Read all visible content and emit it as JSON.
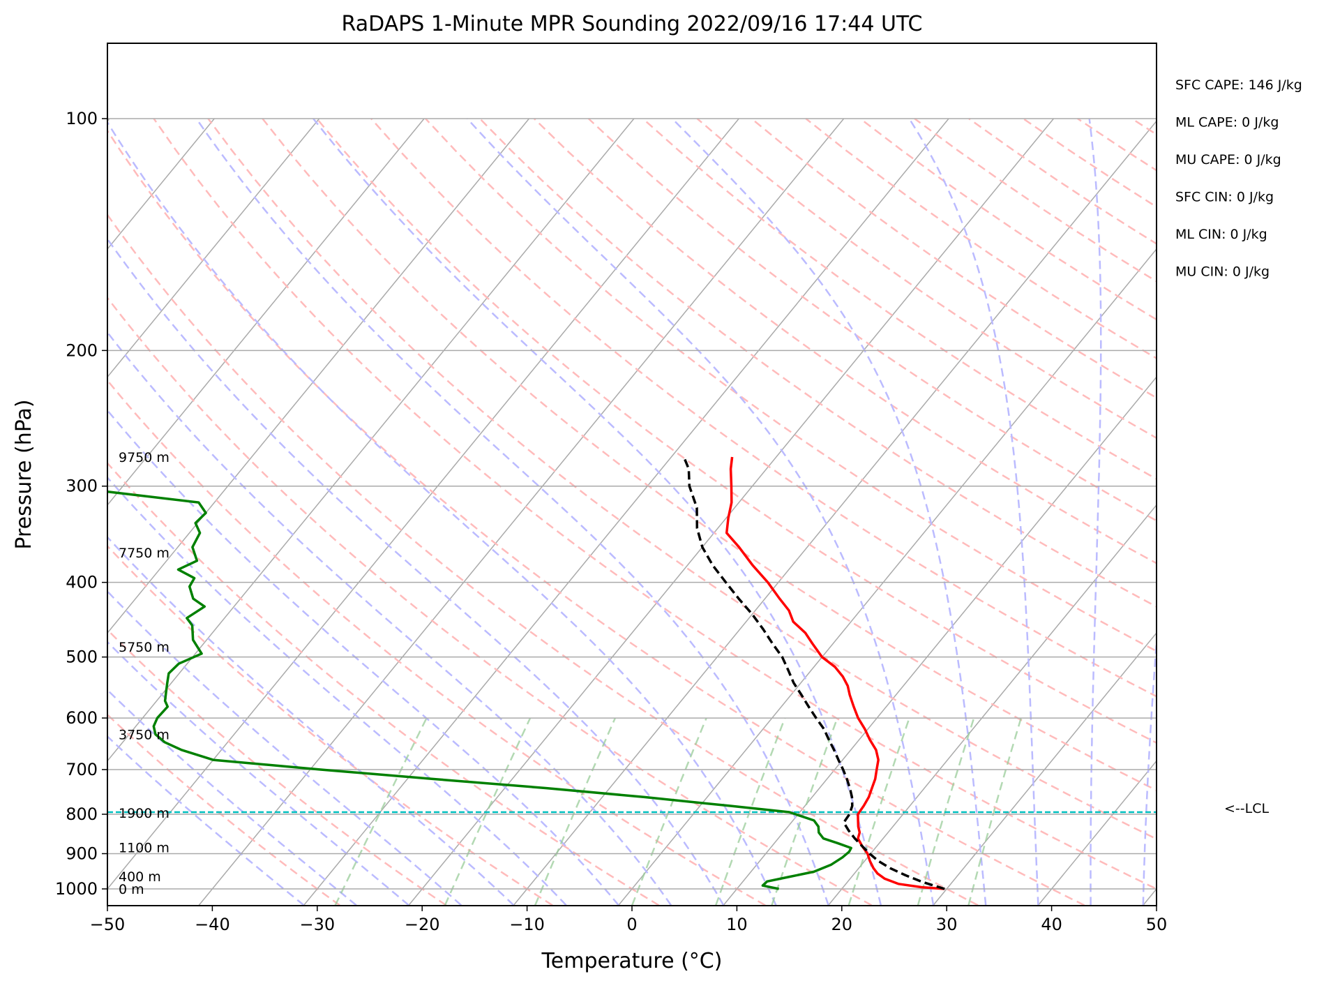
{
  "chart_data": {
    "type": "line",
    "title": "RaDAPS 1-Minute MPR Sounding 2022/09/16 17:44 UTC",
    "xlabel": "Temperature (°C)",
    "ylabel": "Pressure (hPa)",
    "x_scale": "skewed",
    "y_scale": "log",
    "xlim": [
      -50,
      50
    ],
    "ylim": [
      1050,
      100
    ],
    "xticks": [
      -50,
      -40,
      -30,
      -20,
      -10,
      0,
      10,
      20,
      30,
      40,
      50
    ],
    "yticks": [
      100,
      200,
      300,
      400,
      500,
      600,
      700,
      800,
      900,
      1000
    ],
    "grid": true,
    "background_lines": {
      "isotherms_color": "#aaaaaa",
      "dry_adiabats_color": "#ffbbbb",
      "moist_adiabats_color": "#bbbbff",
      "mixing_ratio_color": "#99cc99"
    },
    "series": [
      {
        "role": "temperature",
        "color": "#ff0000",
        "points": [
          [
            1000,
            29.8
          ],
          [
            995,
            27.5
          ],
          [
            985,
            25.0
          ],
          [
            970,
            23.3
          ],
          [
            955,
            22.2
          ],
          [
            940,
            21.4
          ],
          [
            920,
            20.5
          ],
          [
            900,
            19.7
          ],
          [
            880,
            18.6
          ],
          [
            860,
            17.6
          ],
          [
            845,
            17.3
          ],
          [
            830,
            16.7
          ],
          [
            815,
            16.2
          ],
          [
            800,
            15.7
          ],
          [
            780,
            15.6
          ],
          [
            760,
            15.4
          ],
          [
            740,
            15.0
          ],
          [
            720,
            14.6
          ],
          [
            700,
            14.0
          ],
          [
            680,
            13.4
          ],
          [
            660,
            12.4
          ],
          [
            640,
            11.0
          ],
          [
            620,
            9.7
          ],
          [
            600,
            8.2
          ],
          [
            580,
            6.9
          ],
          [
            560,
            5.6
          ],
          [
            545,
            4.7
          ],
          [
            530,
            3.5
          ],
          [
            515,
            2.0
          ],
          [
            500,
            0.0
          ],
          [
            480,
            -2.0
          ],
          [
            465,
            -3.5
          ],
          [
            450,
            -5.5
          ],
          [
            435,
            -6.8
          ],
          [
            420,
            -8.6
          ],
          [
            400,
            -11.0
          ],
          [
            380,
            -13.8
          ],
          [
            360,
            -16.5
          ],
          [
            345,
            -18.8
          ],
          [
            330,
            -19.8
          ],
          [
            315,
            -20.7
          ],
          [
            300,
            -22.0
          ],
          [
            285,
            -23.4
          ],
          [
            275,
            -24.2
          ]
        ]
      },
      {
        "role": "dewpoint",
        "color": "#008000",
        "points": [
          [
            1000,
            14.0
          ],
          [
            990,
            12.2
          ],
          [
            978,
            12.3
          ],
          [
            965,
            14.0
          ],
          [
            950,
            16.0
          ],
          [
            930,
            17.1
          ],
          [
            910,
            17.6
          ],
          [
            895,
            17.8
          ],
          [
            885,
            17.7
          ],
          [
            872,
            16.0
          ],
          [
            860,
            14.3
          ],
          [
            845,
            13.4
          ],
          [
            830,
            12.9
          ],
          [
            815,
            12.0
          ],
          [
            795,
            9.0
          ],
          [
            780,
            2.8
          ],
          [
            760,
            -6.0
          ],
          [
            740,
            -16.0
          ],
          [
            720,
            -27.5
          ],
          [
            700,
            -39.0
          ],
          [
            680,
            -50.0
          ],
          [
            660,
            -53.8
          ],
          [
            645,
            -56.0
          ],
          [
            630,
            -57.5
          ],
          [
            615,
            -58.3
          ],
          [
            600,
            -58.6
          ],
          [
            580,
            -58.5
          ],
          [
            570,
            -59.2
          ],
          [
            555,
            -59.8
          ],
          [
            540,
            -60.4
          ],
          [
            525,
            -61.0
          ],
          [
            510,
            -60.8
          ],
          [
            495,
            -59.4
          ],
          [
            475,
            -61.3
          ],
          [
            455,
            -62.5
          ],
          [
            445,
            -63.6
          ],
          [
            430,
            -62.8
          ],
          [
            420,
            -64.5
          ],
          [
            405,
            -65.8
          ],
          [
            395,
            -66.0
          ],
          [
            385,
            -68.2
          ],
          [
            375,
            -67.1
          ],
          [
            360,
            -68.6
          ],
          [
            345,
            -69.0
          ],
          [
            335,
            -70.2
          ],
          [
            325,
            -70.0
          ],
          [
            315,
            -71.5
          ],
          [
            305,
            -81.0
          ],
          [
            300,
            -92.0
          ]
        ]
      },
      {
        "role": "parcel",
        "color": "#000000",
        "style": "dashed",
        "points": [
          [
            1000,
            29.8
          ],
          [
            980,
            27.2
          ],
          [
            960,
            25.0
          ],
          [
            940,
            23.0
          ],
          [
            920,
            21.3
          ],
          [
            900,
            19.9
          ],
          [
            880,
            18.6
          ],
          [
            860,
            17.3
          ],
          [
            840,
            16.1
          ],
          [
            820,
            15.0
          ],
          [
            800,
            14.9
          ],
          [
            780,
            14.5
          ],
          [
            760,
            13.8
          ],
          [
            740,
            12.9
          ],
          [
            720,
            11.9
          ],
          [
            700,
            10.8
          ],
          [
            680,
            9.6
          ],
          [
            660,
            8.4
          ],
          [
            640,
            7.1
          ],
          [
            620,
            5.8
          ],
          [
            600,
            4.2
          ],
          [
            580,
            2.6
          ],
          [
            560,
            1.0
          ],
          [
            540,
            -0.7
          ],
          [
            520,
            -2.2
          ],
          [
            500,
            -3.8
          ],
          [
            480,
            -5.8
          ],
          [
            460,
            -7.8
          ],
          [
            440,
            -10.0
          ],
          [
            420,
            -12.5
          ],
          [
            400,
            -15.0
          ],
          [
            380,
            -17.6
          ],
          [
            360,
            -20.0
          ],
          [
            340,
            -22.0
          ],
          [
            320,
            -23.6
          ],
          [
            300,
            -26.0
          ],
          [
            285,
            -27.4
          ],
          [
            275,
            -28.8
          ]
        ]
      }
    ],
    "lcl": {
      "pressure": 795,
      "color": "#00bfbf",
      "label": "<--LCL"
    },
    "height_labels": [
      {
        "pressure": 275,
        "text": "9750 m"
      },
      {
        "pressure": 366,
        "text": "7750 m"
      },
      {
        "pressure": 485,
        "text": "5750 m"
      },
      {
        "pressure": 630,
        "text": "3750 m"
      },
      {
        "pressure": 797,
        "text": "1900 m"
      },
      {
        "pressure": 883,
        "text": "1100 m"
      },
      {
        "pressure": 963,
        "text": "400 m"
      },
      {
        "pressure": 1000,
        "text": "0 m"
      }
    ],
    "indices": [
      "SFC CAPE: 146 J/kg",
      "ML CAPE: 0 J/kg",
      "MU CAPE: 0 J/kg",
      "SFC CIN: 0 J/kg",
      "ML CIN: 0 J/kg",
      "MU CIN: 0 J/kg"
    ]
  }
}
